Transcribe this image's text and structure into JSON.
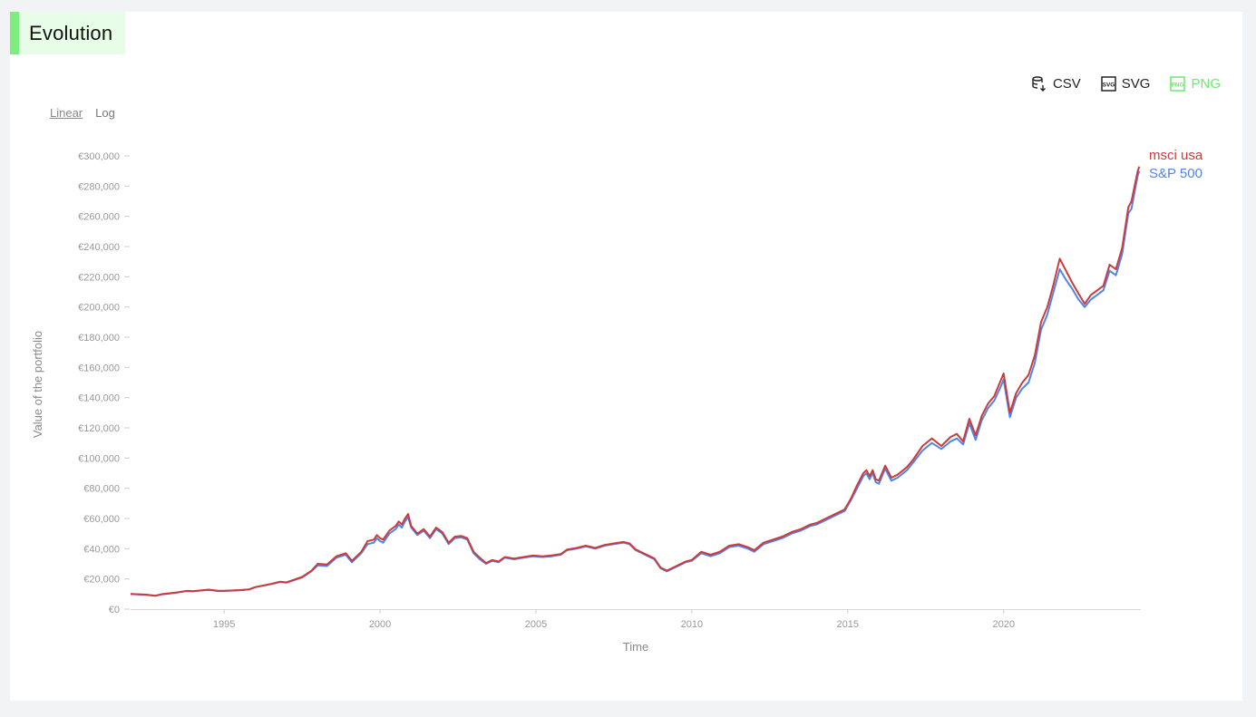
{
  "panel": {
    "title": "Evolution"
  },
  "exports": {
    "csv_label": "CSV",
    "svg_label": "SVG",
    "png_label": "PNG"
  },
  "scale_toggle": {
    "linear_label": "Linear",
    "log_label": "Log",
    "selected": "Linear"
  },
  "colors": {
    "accent": "#7dee7d",
    "msci_usa": "#cc3b3b",
    "sp500": "#4f86e6"
  },
  "chart_data": {
    "type": "line",
    "xlabel": "Time",
    "ylabel": "Value of the portfolio",
    "xlim": [
      1992.0,
      2024.4
    ],
    "ylim": [
      0,
      300000
    ],
    "x_ticks": [
      1995,
      2000,
      2005,
      2010,
      2015,
      2020
    ],
    "y_ticks": [
      0,
      20000,
      40000,
      60000,
      80000,
      100000,
      120000,
      140000,
      160000,
      180000,
      200000,
      220000,
      240000,
      260000,
      280000,
      300000
    ],
    "y_tick_labels": [
      "€0",
      "€20,000",
      "€40,000",
      "€60,000",
      "€80,000",
      "€100,000",
      "€120,000",
      "€140,000",
      "€160,000",
      "€180,000",
      "€200,000",
      "€220,000",
      "€240,000",
      "€260,000",
      "€280,000",
      "€300,000"
    ],
    "x_tick_labels": [
      "1995",
      "2000",
      "2005",
      "2010",
      "2015",
      "2020"
    ],
    "series": [
      {
        "name": "S&P 500",
        "color": "#4f86e6",
        "values": [
          [
            1992.0,
            10000
          ],
          [
            1992.5,
            9500
          ],
          [
            1992.8,
            8800
          ],
          [
            1993.0,
            9800
          ],
          [
            1993.5,
            11000
          ],
          [
            1993.8,
            12000
          ],
          [
            1994.0,
            11800
          ],
          [
            1994.5,
            12800
          ],
          [
            1994.8,
            12000
          ],
          [
            1995.0,
            12000
          ],
          [
            1995.5,
            12500
          ],
          [
            1995.8,
            13000
          ],
          [
            1996.0,
            14500
          ],
          [
            1996.5,
            16500
          ],
          [
            1996.8,
            18000
          ],
          [
            1997.0,
            17500
          ],
          [
            1997.5,
            21000
          ],
          [
            1997.8,
            25000
          ],
          [
            1998.0,
            29000
          ],
          [
            1998.3,
            28500
          ],
          [
            1998.6,
            34000
          ],
          [
            1998.9,
            36000
          ],
          [
            1999.1,
            31000
          ],
          [
            1999.4,
            37000
          ],
          [
            1999.6,
            43000
          ],
          [
            1999.8,
            44000
          ],
          [
            1999.9,
            47000
          ],
          [
            2000.0,
            45000
          ],
          [
            2000.1,
            44000
          ],
          [
            2000.3,
            50000
          ],
          [
            2000.5,
            53000
          ],
          [
            2000.6,
            56000
          ],
          [
            2000.7,
            54000
          ],
          [
            2000.8,
            58000
          ],
          [
            2000.9,
            61000
          ],
          [
            2001.0,
            54000
          ],
          [
            2001.2,
            49000
          ],
          [
            2001.4,
            52000
          ],
          [
            2001.6,
            47000
          ],
          [
            2001.8,
            53000
          ],
          [
            2002.0,
            50000
          ],
          [
            2002.2,
            43000
          ],
          [
            2002.4,
            47000
          ],
          [
            2002.6,
            47500
          ],
          [
            2002.8,
            46000
          ],
          [
            2003.0,
            37000
          ],
          [
            2003.2,
            33000
          ],
          [
            2003.4,
            30000
          ],
          [
            2003.6,
            32000
          ],
          [
            2003.8,
            31000
          ],
          [
            2004.0,
            34000
          ],
          [
            2004.3,
            33000
          ],
          [
            2004.6,
            34000
          ],
          [
            2004.9,
            35000
          ],
          [
            2005.2,
            34500
          ],
          [
            2005.5,
            35000
          ],
          [
            2005.8,
            36000
          ],
          [
            2006.0,
            39000
          ],
          [
            2006.3,
            40000
          ],
          [
            2006.6,
            41500
          ],
          [
            2006.9,
            40000
          ],
          [
            2007.2,
            42000
          ],
          [
            2007.5,
            43000
          ],
          [
            2007.8,
            44000
          ],
          [
            2008.0,
            43000
          ],
          [
            2008.2,
            39000
          ],
          [
            2008.4,
            37000
          ],
          [
            2008.6,
            35000
          ],
          [
            2008.8,
            33000
          ],
          [
            2009.0,
            27000
          ],
          [
            2009.2,
            25000
          ],
          [
            2009.5,
            28000
          ],
          [
            2009.8,
            31000
          ],
          [
            2010.0,
            32000
          ],
          [
            2010.3,
            37000
          ],
          [
            2010.6,
            35000
          ],
          [
            2010.9,
            37000
          ],
          [
            2011.2,
            41000
          ],
          [
            2011.5,
            42000
          ],
          [
            2011.8,
            40000
          ],
          [
            2012.0,
            38000
          ],
          [
            2012.3,
            43000
          ],
          [
            2012.6,
            45000
          ],
          [
            2012.9,
            47000
          ],
          [
            2013.2,
            50000
          ],
          [
            2013.5,
            52000
          ],
          [
            2013.8,
            55000
          ],
          [
            2014.0,
            56000
          ],
          [
            2014.3,
            59000
          ],
          [
            2014.6,
            62000
          ],
          [
            2014.9,
            65000
          ],
          [
            2015.1,
            72000
          ],
          [
            2015.3,
            80000
          ],
          [
            2015.5,
            88000
          ],
          [
            2015.6,
            90000
          ],
          [
            2015.7,
            86000
          ],
          [
            2015.8,
            90000
          ],
          [
            2015.9,
            84000
          ],
          [
            2016.0,
            83000
          ],
          [
            2016.2,
            93000
          ],
          [
            2016.4,
            85000
          ],
          [
            2016.6,
            87000
          ],
          [
            2016.9,
            92000
          ],
          [
            2017.1,
            97000
          ],
          [
            2017.4,
            105000
          ],
          [
            2017.7,
            110000
          ],
          [
            2018.0,
            106000
          ],
          [
            2018.3,
            111000
          ],
          [
            2018.5,
            113000
          ],
          [
            2018.7,
            109000
          ],
          [
            2018.9,
            123000
          ],
          [
            2019.1,
            112000
          ],
          [
            2019.3,
            125000
          ],
          [
            2019.5,
            133000
          ],
          [
            2019.7,
            138000
          ],
          [
            2019.9,
            147000
          ],
          [
            2020.0,
            152000
          ],
          [
            2020.2,
            127000
          ],
          [
            2020.4,
            140000
          ],
          [
            2020.6,
            146000
          ],
          [
            2020.8,
            150000
          ],
          [
            2021.0,
            163000
          ],
          [
            2021.2,
            185000
          ],
          [
            2021.4,
            195000
          ],
          [
            2021.6,
            210000
          ],
          [
            2021.8,
            225000
          ],
          [
            2022.0,
            218000
          ],
          [
            2022.2,
            212000
          ],
          [
            2022.4,
            205000
          ],
          [
            2022.6,
            200000
          ],
          [
            2022.8,
            205000
          ],
          [
            2023.0,
            208000
          ],
          [
            2023.2,
            211000
          ],
          [
            2023.4,
            224000
          ],
          [
            2023.6,
            221000
          ],
          [
            2023.8,
            235000
          ],
          [
            2024.0,
            262000
          ],
          [
            2024.1,
            265000
          ],
          [
            2024.2,
            276000
          ],
          [
            2024.3,
            287000
          ],
          [
            2024.35,
            290000
          ]
        ]
      },
      {
        "name": "msci usa",
        "color": "#cc3b3b",
        "values": [
          [
            1992.0,
            10000
          ],
          [
            1992.5,
            9600
          ],
          [
            1992.8,
            8900
          ],
          [
            1993.0,
            9900
          ],
          [
            1993.5,
            11100
          ],
          [
            1993.8,
            12100
          ],
          [
            1994.0,
            11900
          ],
          [
            1994.5,
            12900
          ],
          [
            1994.8,
            12100
          ],
          [
            1995.0,
            12100
          ],
          [
            1995.5,
            12600
          ],
          [
            1995.8,
            13100
          ],
          [
            1996.0,
            14600
          ],
          [
            1996.5,
            16700
          ],
          [
            1996.8,
            18200
          ],
          [
            1997.0,
            17700
          ],
          [
            1997.5,
            21300
          ],
          [
            1997.8,
            25400
          ],
          [
            1998.0,
            30000
          ],
          [
            1998.3,
            29500
          ],
          [
            1998.6,
            35000
          ],
          [
            1998.9,
            37000
          ],
          [
            1999.1,
            32000
          ],
          [
            1999.4,
            38000
          ],
          [
            1999.6,
            45000
          ],
          [
            1999.8,
            46000
          ],
          [
            1999.9,
            49000
          ],
          [
            2000.0,
            47000
          ],
          [
            2000.1,
            46000
          ],
          [
            2000.3,
            52000
          ],
          [
            2000.5,
            55000
          ],
          [
            2000.6,
            58000
          ],
          [
            2000.7,
            56000
          ],
          [
            2000.8,
            60000
          ],
          [
            2000.9,
            63000
          ],
          [
            2001.0,
            55000
          ],
          [
            2001.2,
            50000
          ],
          [
            2001.4,
            53000
          ],
          [
            2001.6,
            48000
          ],
          [
            2001.8,
            54000
          ],
          [
            2002.0,
            51000
          ],
          [
            2002.2,
            44000
          ],
          [
            2002.4,
            48000
          ],
          [
            2002.6,
            48500
          ],
          [
            2002.8,
            47000
          ],
          [
            2003.0,
            38000
          ],
          [
            2003.2,
            34000
          ],
          [
            2003.4,
            30500
          ],
          [
            2003.6,
            32500
          ],
          [
            2003.8,
            31500
          ],
          [
            2004.0,
            34500
          ],
          [
            2004.3,
            33500
          ],
          [
            2004.6,
            34500
          ],
          [
            2004.9,
            35500
          ],
          [
            2005.2,
            35000
          ],
          [
            2005.5,
            35500
          ],
          [
            2005.8,
            36500
          ],
          [
            2006.0,
            39500
          ],
          [
            2006.3,
            40500
          ],
          [
            2006.6,
            42000
          ],
          [
            2006.9,
            40500
          ],
          [
            2007.2,
            42500
          ],
          [
            2007.5,
            43500
          ],
          [
            2007.8,
            44500
          ],
          [
            2008.0,
            43500
          ],
          [
            2008.2,
            39500
          ],
          [
            2008.4,
            37500
          ],
          [
            2008.6,
            35500
          ],
          [
            2008.8,
            33500
          ],
          [
            2009.0,
            27500
          ],
          [
            2009.2,
            25500
          ],
          [
            2009.5,
            28500
          ],
          [
            2009.8,
            31500
          ],
          [
            2010.0,
            32500
          ],
          [
            2010.3,
            38000
          ],
          [
            2010.6,
            36000
          ],
          [
            2010.9,
            38000
          ],
          [
            2011.2,
            42000
          ],
          [
            2011.5,
            43000
          ],
          [
            2011.8,
            41000
          ],
          [
            2012.0,
            39000
          ],
          [
            2012.3,
            44000
          ],
          [
            2012.6,
            46000
          ],
          [
            2012.9,
            48000
          ],
          [
            2013.2,
            51000
          ],
          [
            2013.5,
            53000
          ],
          [
            2013.8,
            56000
          ],
          [
            2014.0,
            57000
          ],
          [
            2014.3,
            60000
          ],
          [
            2014.6,
            63000
          ],
          [
            2014.9,
            66000
          ],
          [
            2015.1,
            73000
          ],
          [
            2015.3,
            82000
          ],
          [
            2015.5,
            90000
          ],
          [
            2015.6,
            92000
          ],
          [
            2015.7,
            88000
          ],
          [
            2015.8,
            92000
          ],
          [
            2015.9,
            86000
          ],
          [
            2016.0,
            85000
          ],
          [
            2016.2,
            95000
          ],
          [
            2016.4,
            87000
          ],
          [
            2016.6,
            89000
          ],
          [
            2016.9,
            94000
          ],
          [
            2017.1,
            99000
          ],
          [
            2017.4,
            108000
          ],
          [
            2017.7,
            113000
          ],
          [
            2018.0,
            108000
          ],
          [
            2018.3,
            114000
          ],
          [
            2018.5,
            116000
          ],
          [
            2018.7,
            111000
          ],
          [
            2018.9,
            126000
          ],
          [
            2019.1,
            115000
          ],
          [
            2019.3,
            128000
          ],
          [
            2019.5,
            136000
          ],
          [
            2019.7,
            141000
          ],
          [
            2019.9,
            151000
          ],
          [
            2020.0,
            156000
          ],
          [
            2020.2,
            130000
          ],
          [
            2020.4,
            143000
          ],
          [
            2020.6,
            150000
          ],
          [
            2020.8,
            155000
          ],
          [
            2021.0,
            168000
          ],
          [
            2021.2,
            190000
          ],
          [
            2021.4,
            200000
          ],
          [
            2021.6,
            215000
          ],
          [
            2021.8,
            232000
          ],
          [
            2022.0,
            224000
          ],
          [
            2022.2,
            216000
          ],
          [
            2022.4,
            209000
          ],
          [
            2022.6,
            202000
          ],
          [
            2022.8,
            208000
          ],
          [
            2023.0,
            211000
          ],
          [
            2023.2,
            214000
          ],
          [
            2023.4,
            228000
          ],
          [
            2023.6,
            225000
          ],
          [
            2023.8,
            239000
          ],
          [
            2024.0,
            266000
          ],
          [
            2024.1,
            270000
          ],
          [
            2024.2,
            280000
          ],
          [
            2024.3,
            290000
          ],
          [
            2024.35,
            293000
          ]
        ]
      }
    ]
  }
}
